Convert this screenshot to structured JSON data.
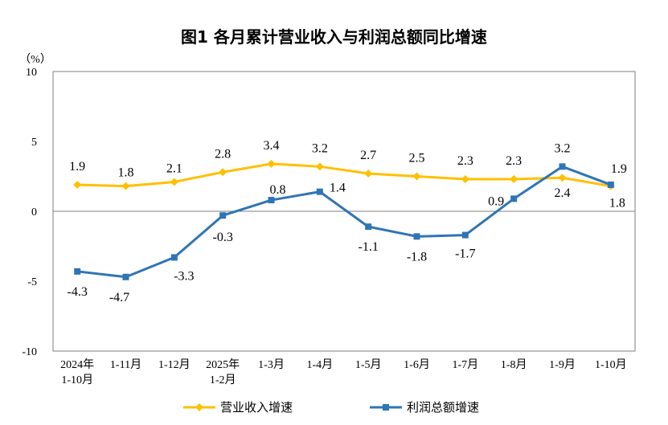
{
  "chart_data": {
    "type": "line",
    "title": "图1  各月累计营业收入与利润总额同比增速",
    "ylabel": "（%）",
    "xlabel": "",
    "ylim": [
      -10,
      10
    ],
    "yticks": [
      "10",
      "5",
      "0",
      "-5",
      "-10"
    ],
    "categories": [
      [
        "2024年",
        "1-10月"
      ],
      [
        "1-11月"
      ],
      [
        "1-12月"
      ],
      [
        "2025年",
        "1-2月"
      ],
      [
        "1-3月"
      ],
      [
        "1-4月"
      ],
      [
        "1-5月"
      ],
      [
        "1-6月"
      ],
      [
        "1-7月"
      ],
      [
        "1-8月"
      ],
      [
        "1-9月"
      ],
      [
        "1-10月"
      ]
    ],
    "series": [
      {
        "name": "营业收入增速",
        "color": "#FFC000",
        "marker": "diamond",
        "values": [
          1.9,
          1.8,
          2.1,
          2.8,
          3.4,
          3.2,
          2.7,
          2.5,
          2.3,
          2.3,
          2.4,
          1.8
        ],
        "labels": [
          "1.9",
          "1.8",
          "2.1",
          "2.8",
          "3.4",
          "3.2",
          "2.7",
          "2.5",
          "2.3",
          "2.3",
          "2.4",
          "1.8"
        ]
      },
      {
        "name": "利润总额增速",
        "color": "#2E75B6",
        "marker": "square",
        "values": [
          -4.3,
          -4.7,
          -3.3,
          -0.3,
          0.8,
          1.4,
          -1.1,
          -1.8,
          -1.7,
          0.9,
          3.2,
          1.9
        ],
        "labels": [
          "-4.3",
          "-4.7",
          "-3.3",
          "-0.3",
          "0.8",
          "1.4",
          "-1.1",
          "-1.8",
          "-1.7",
          "0.9",
          "3.2",
          "1.9"
        ]
      }
    ],
    "legend_position": "bottom"
  }
}
